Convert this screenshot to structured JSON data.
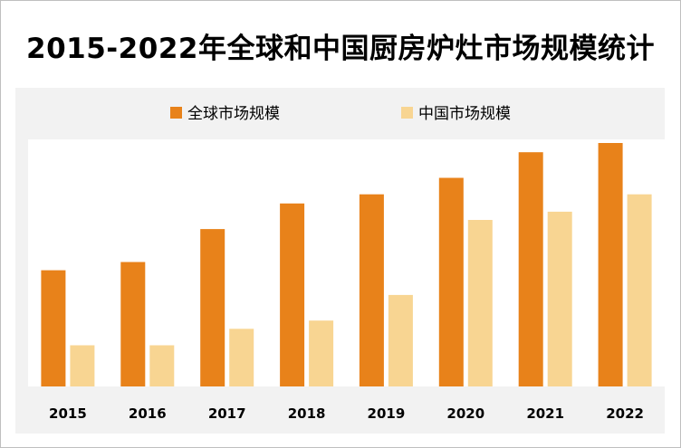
{
  "title": "2015-2022年全球和中国厨房炉灶市场规模统计",
  "colors": {
    "global": "#E8821A",
    "china": "#F8D592",
    "panel": "#F2F2F2",
    "plot": "#FFFFFF"
  },
  "chart_data": {
    "type": "bar",
    "title": "2015-2022年全球和中国厨房炉灶市场规模统计",
    "categories": [
      "2015",
      "2016",
      "2017",
      "2018",
      "2019",
      "2020",
      "2021",
      "2022"
    ],
    "series": [
      {
        "name": "全球市场规模",
        "values": [
          127,
          136,
          172,
          200,
          210,
          228,
          256,
          266
        ]
      },
      {
        "name": "中国市场规模",
        "values": [
          45,
          45,
          63,
          72,
          100,
          182,
          191,
          210
        ]
      }
    ],
    "xlabel": "",
    "ylabel": "",
    "ylim": [
      0,
      270
    ],
    "grid": false,
    "legend": "top-center"
  }
}
